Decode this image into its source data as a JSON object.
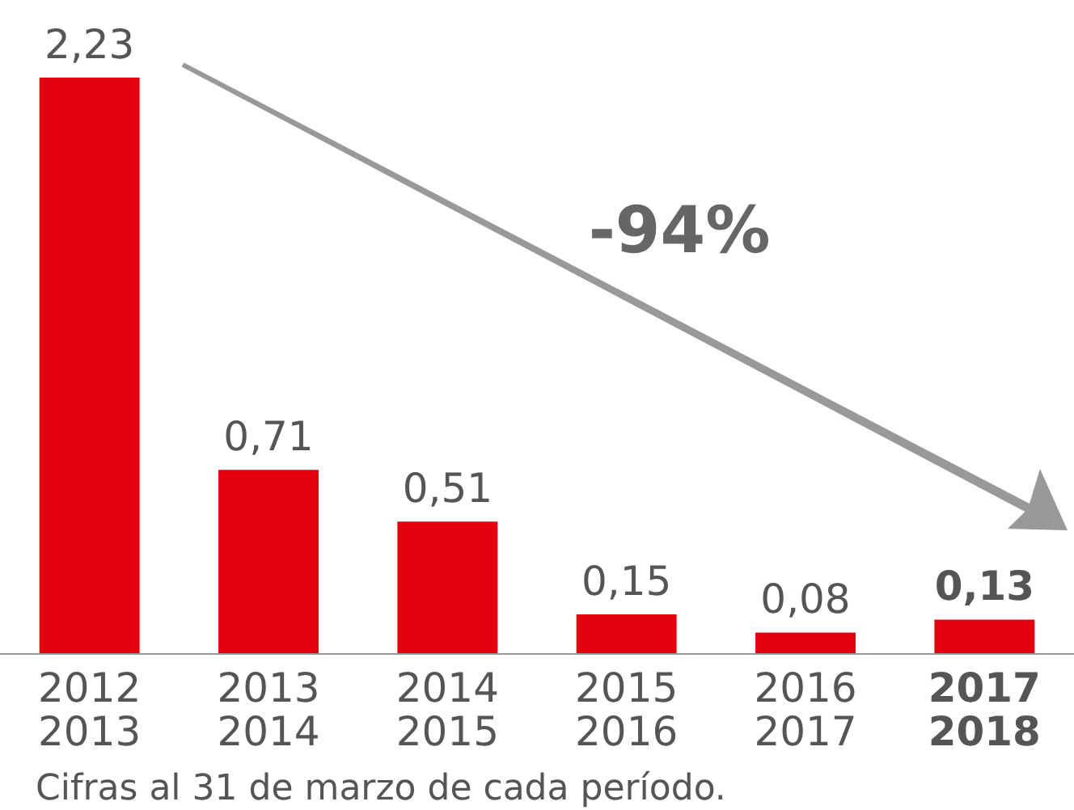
{
  "chart_data": {
    "type": "bar",
    "categories": [
      "2012\n2013",
      "2013\n2014",
      "2014\n2015",
      "2015\n2016",
      "2016\n2017",
      "2017\n2018"
    ],
    "values": [
      2.23,
      0.71,
      0.51,
      0.15,
      0.08,
      0.13
    ],
    "value_labels": [
      "2,23",
      "0,71",
      "0,51",
      "0,15",
      "0,08",
      "0,13"
    ],
    "color": "#e3000f",
    "annotations": [
      "-94%",
      "Cifras al 31 de marzo de cada período."
    ]
  }
}
